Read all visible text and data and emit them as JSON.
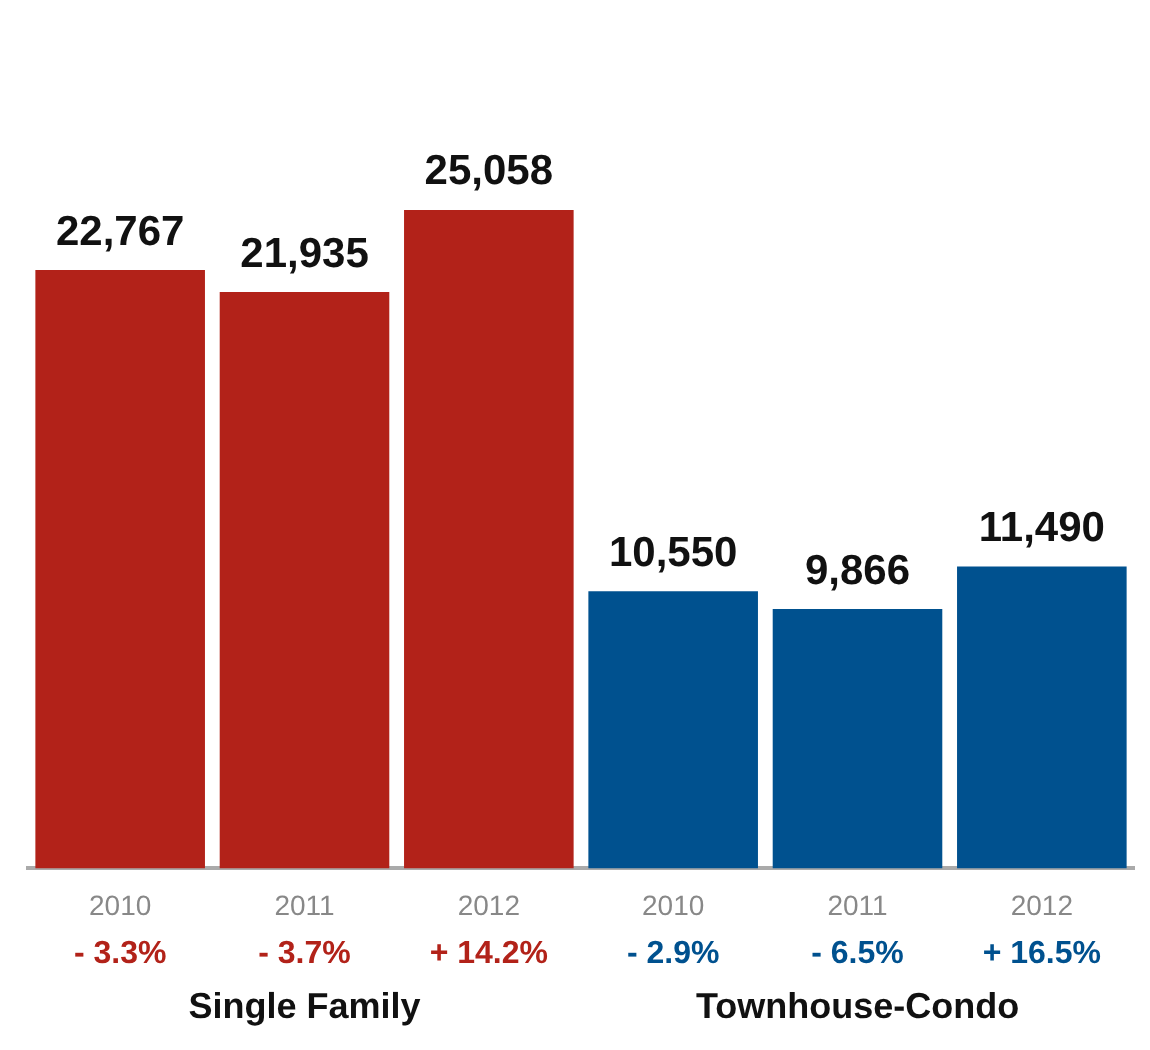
{
  "chart_data": {
    "type": "bar",
    "categories": [
      "2010",
      "2011",
      "2012",
      "2010",
      "2011",
      "2012"
    ],
    "legend": false,
    "grid": false,
    "tick_labels": "x",
    "values": [
      22767,
      21935,
      25058,
      10550,
      9866,
      11490
    ],
    "colors": [
      "#b22219",
      "#b22219",
      "#b22219",
      "#00518f",
      "#00518f",
      "#00518f"
    ],
    "value_labels": [
      "22,767",
      "21,935",
      "25,058",
      "10,550",
      "9,866",
      "11,490"
    ],
    "annotations": [
      "- 3.3%",
      "- 3.7%",
      "+ 14.2%",
      "- 2.9%",
      "- 6.5%",
      "+ 16.5%",
      "Single Family",
      "Townhouse-Condo"
    ]
  }
}
